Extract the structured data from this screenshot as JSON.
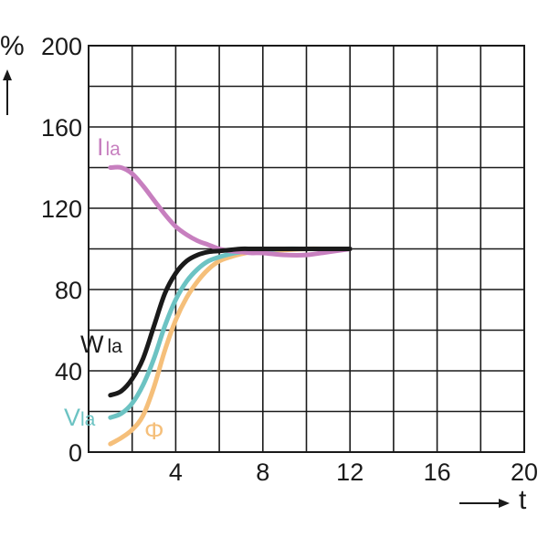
{
  "chart_data": {
    "type": "line",
    "xlabel": "t",
    "ylabel": "%",
    "xlim": [
      0,
      20
    ],
    "ylim": [
      0,
      200
    ],
    "x_ticks": [
      "4",
      "8",
      "12",
      "16",
      "20"
    ],
    "y_ticks": [
      "0",
      "40",
      "80",
      "120",
      "160",
      "200"
    ],
    "grid": true,
    "series": [
      {
        "name": "Ila",
        "label_main": "I",
        "label_sub": "la",
        "color": "#c77fbf",
        "x": [
          1,
          1.5,
          2,
          2.5,
          3,
          3.5,
          4,
          4.5,
          5,
          5.5,
          6,
          6.5,
          7,
          7.5,
          8,
          9,
          10,
          11,
          12
        ],
        "y": [
          140,
          140,
          137,
          131,
          124,
          117,
          111,
          107,
          104,
          102,
          100,
          99,
          98.5,
          98,
          98,
          97,
          97,
          98.5,
          100
        ]
      },
      {
        "name": "W la",
        "label_main": "W",
        "label_sub": "la",
        "color": "#1a1a1a",
        "x": [
          1,
          1.5,
          2,
          2.5,
          3,
          3.5,
          4,
          4.5,
          5,
          5.5,
          6,
          6.5,
          7,
          7.5,
          8,
          9,
          10,
          11,
          12
        ],
        "y": [
          28,
          30,
          36,
          46,
          62,
          78,
          88,
          94,
          97,
          98.5,
          99,
          99.5,
          100,
          100,
          100,
          100,
          100,
          100,
          100
        ]
      },
      {
        "name": "Vla",
        "label_main": "V",
        "label_sub": "la",
        "color": "#6cc3c3",
        "x": [
          1,
          1.5,
          2,
          2.5,
          3,
          3.5,
          4,
          4.5,
          5,
          5.5,
          6,
          6.5,
          7,
          7.5,
          8,
          9,
          10,
          11,
          12
        ],
        "y": [
          17,
          19,
          24,
          33,
          46,
          62,
          75,
          84,
          90,
          94,
          96,
          97.5,
          98.5,
          99,
          99.5,
          100,
          100,
          100,
          100
        ]
      },
      {
        "name": "Φ",
        "label_main": "Φ",
        "label_sub": "",
        "color": "#f5bf7a",
        "x": [
          1,
          1.5,
          2,
          2.5,
          3,
          3.5,
          4,
          4.5,
          5,
          5.5,
          6,
          6.5,
          7,
          7.5,
          8,
          9,
          10,
          11,
          12
        ],
        "y": [
          4,
          7,
          11,
          18,
          32,
          50,
          65,
          76,
          84,
          90,
          94,
          96,
          97.5,
          98.5,
          99,
          99.5,
          100,
          100,
          100
        ]
      }
    ]
  }
}
